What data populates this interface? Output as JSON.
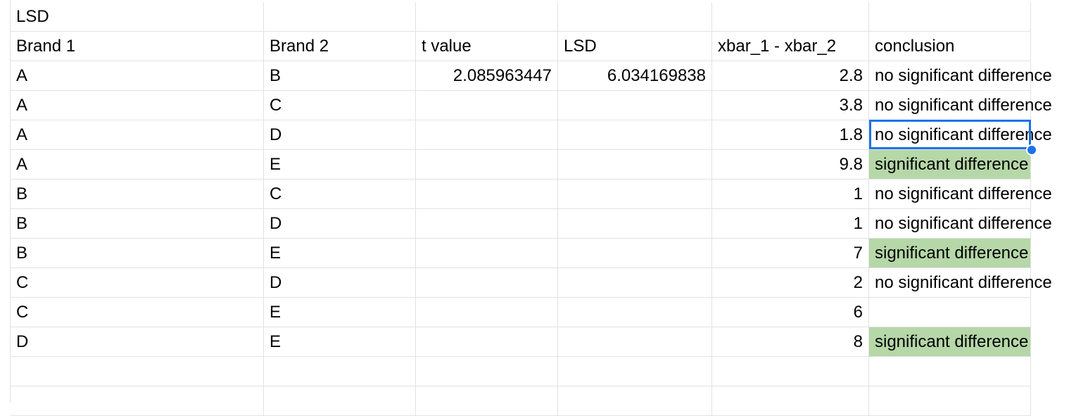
{
  "sheet": {
    "accent_color": "#1a73e8",
    "highlight_color": "#b6d7a8",
    "title": "LSD",
    "columns": [
      "Brand 1",
      "Brand 2",
      "t value",
      "LSD",
      "xbar_1 - xbar_2",
      "conclusion"
    ],
    "rows": [
      [
        "A",
        "B",
        "2.085963447",
        "6.034169838",
        "2.8",
        "no significant difference"
      ],
      [
        "A",
        "C",
        "",
        "",
        "3.8",
        "no significant difference"
      ],
      [
        "A",
        "D",
        "",
        "",
        "1.8",
        "no significant difference"
      ],
      [
        "A",
        "E",
        "",
        "",
        "9.8",
        "significant difference"
      ],
      [
        "B",
        "C",
        "",
        "",
        "1",
        "no significant difference"
      ],
      [
        "B",
        "D",
        "",
        "",
        "1",
        "no significant difference"
      ],
      [
        "B",
        "E",
        "",
        "",
        "7",
        "significant difference"
      ],
      [
        "C",
        "D",
        "",
        "",
        "2",
        "no significant difference"
      ],
      [
        "C",
        "E",
        "",
        "",
        "6",
        ""
      ],
      [
        "D",
        "E",
        "",
        "",
        "8",
        "significant difference"
      ]
    ],
    "selected_cell": "F5"
  }
}
